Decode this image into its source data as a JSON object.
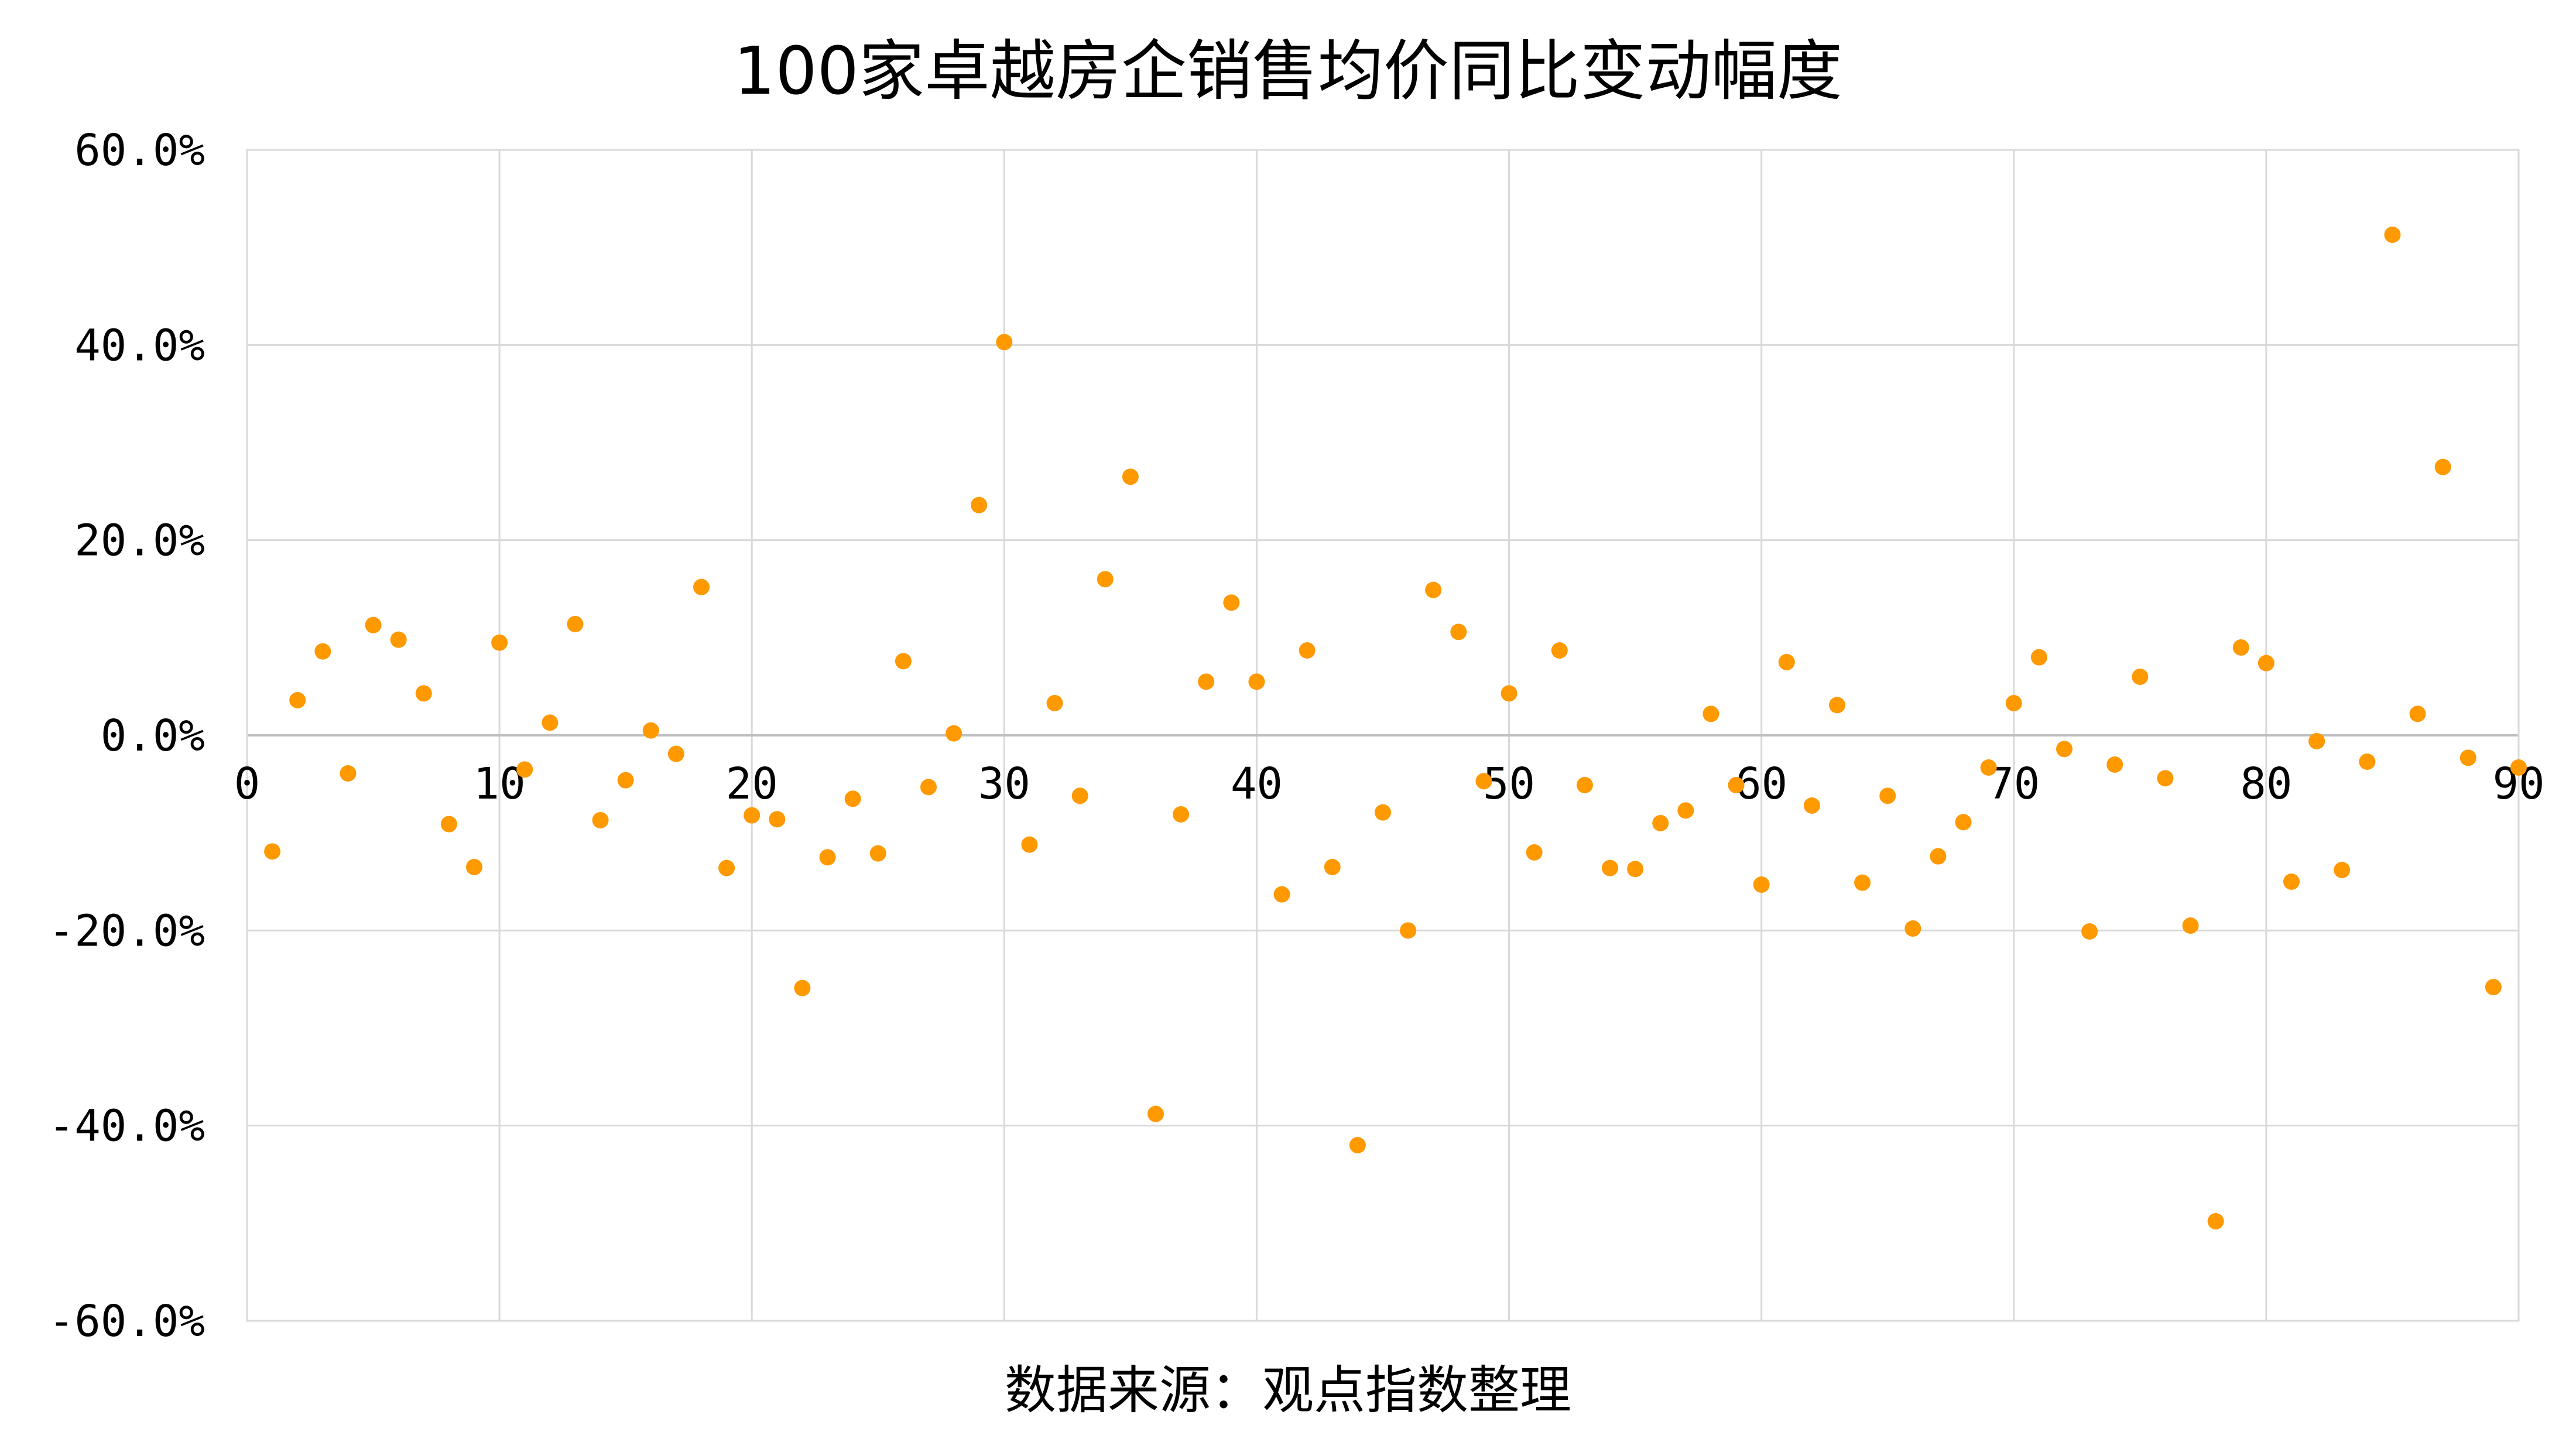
{
  "chart_data": {
    "type": "scatter",
    "title": "100家卓越房企销售均价同比变动幅度",
    "source": "数据来源：观点指数整理",
    "xlim": [
      0,
      90
    ],
    "ylim": [
      -60,
      60
    ],
    "x_ticks": [
      "0",
      "10",
      "20",
      "30",
      "40",
      "50",
      "60",
      "70",
      "80",
      "90"
    ],
    "y_ticks": [
      "60.0%",
      "40.0%",
      "20.0%",
      "0.0%",
      "-20.0%",
      "-40.0%",
      "-60.0%"
    ],
    "grid": true,
    "marker_color": "#ff9900",
    "x": [
      1,
      2,
      3,
      4,
      5,
      6,
      7,
      8,
      9,
      10,
      11,
      12,
      13,
      14,
      15,
      16,
      17,
      18,
      19,
      20,
      21,
      22,
      23,
      24,
      25,
      26,
      27,
      28,
      29,
      30,
      31,
      32,
      33,
      34,
      35,
      36,
      37,
      38,
      39,
      40,
      41,
      42,
      43,
      44,
      45,
      46,
      47,
      48,
      49,
      50,
      51,
      52,
      53,
      54,
      55,
      56,
      57,
      58,
      59,
      60,
      61,
      62,
      63,
      64,
      65,
      66,
      67,
      68,
      69,
      70,
      71,
      72,
      73,
      74,
      75,
      76,
      77,
      78,
      79,
      80,
      81,
      82,
      83,
      84,
      85,
      86,
      87,
      88,
      89,
      90
    ],
    "y": [
      -11.9,
      3.6,
      8.6,
      -3.9,
      11.3,
      9.8,
      4.3,
      -9.1,
      -13.5,
      9.5,
      -3.5,
      1.3,
      11.4,
      -8.7,
      -4.6,
      0.5,
      -1.9,
      15.2,
      -13.6,
      -8.2,
      -8.6,
      -25.9,
      -12.5,
      -6.5,
      -12.1,
      7.6,
      -5.3,
      0.2,
      23.6,
      40.3,
      -11.2,
      3.3,
      -6.2,
      16.0,
      26.5,
      -38.8,
      -8.1,
      5.5,
      13.6,
      5.5,
      -16.3,
      8.7,
      -13.5,
      -42.0,
      -7.9,
      -20.0,
      14.9,
      10.6,
      -4.7,
      4.3,
      -12.0,
      8.7,
      -5.1,
      -13.6,
      -13.7,
      -9.0,
      -7.7,
      2.2,
      -5.1,
      -15.3,
      7.5,
      -7.2,
      3.1,
      -15.1,
      -6.2,
      -19.8,
      -12.4,
      -8.9,
      -3.3,
      3.3,
      8.0,
      -1.4,
      -20.1,
      -3.0,
      6.0,
      -4.4,
      -19.5,
      -49.8,
      9.0,
      7.4,
      -15.0,
      -0.6,
      -13.8,
      -2.7,
      51.3,
      2.2,
      27.5,
      -2.3,
      -25.8,
      -3.3
    ]
  }
}
